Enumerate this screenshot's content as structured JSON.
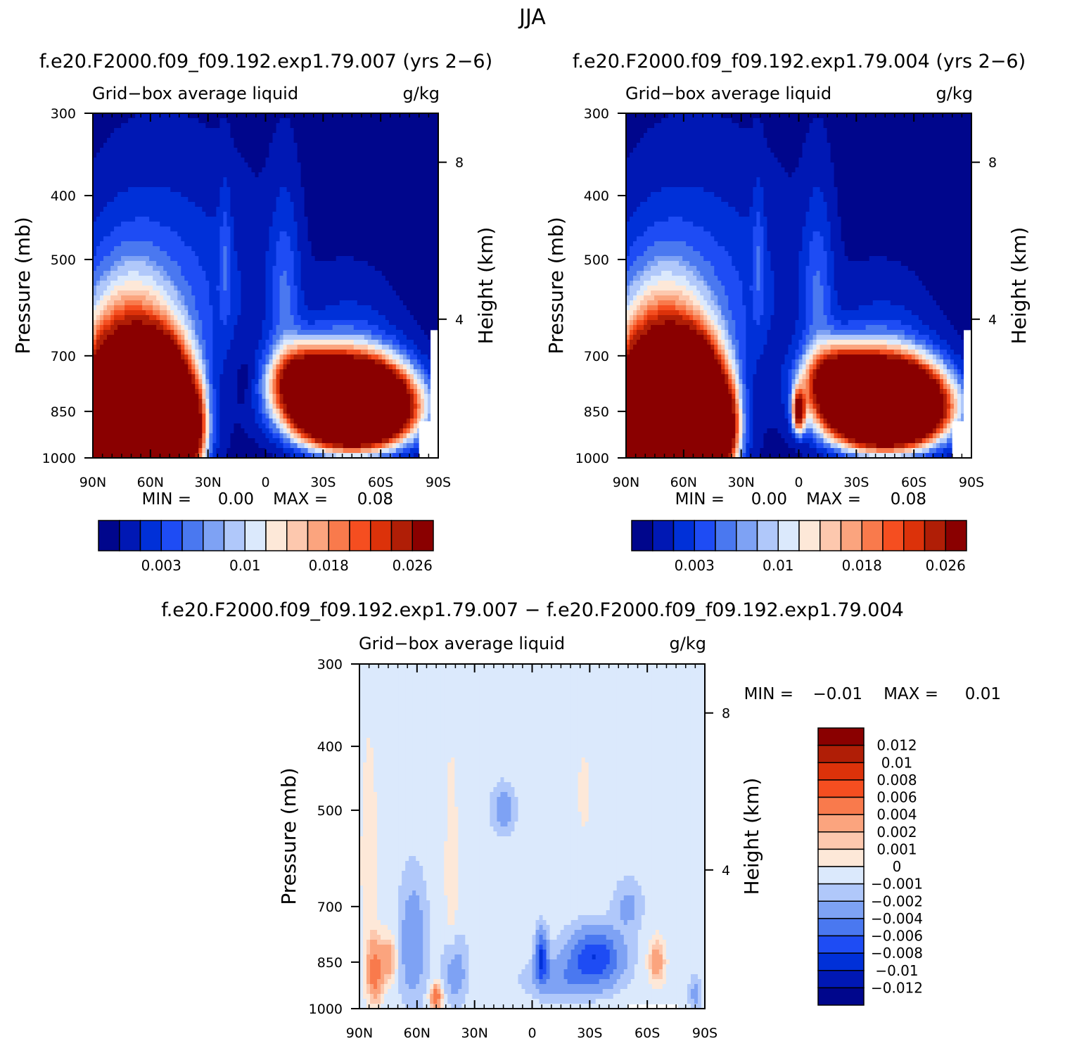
{
  "figure": {
    "title": "JJA",
    "colors": {
      "abs_levels": [
        "#00068c",
        "#0018b4",
        "#0030d8",
        "#1e4cf4",
        "#4a78f0",
        "#7ea2f4",
        "#b0c8fa",
        "#dbe9fc",
        "#fde8d8",
        "#fdc8ae",
        "#fba47e",
        "#f97a4c",
        "#f54e20",
        "#dc320a",
        "#b01e06",
        "#8a0000"
      ],
      "diff_levels": [
        "#00068c",
        "#0018b4",
        "#0030d8",
        "#1e4cf4",
        "#4a78f0",
        "#7ea2f4",
        "#b0c8fa",
        "#dbe9fc",
        "#fde8d8",
        "#fdc8ae",
        "#fba47e",
        "#f97a4c",
        "#f54e20",
        "#dc320a",
        "#b01e06",
        "#8a0000"
      ]
    }
  },
  "chart_data": [
    {
      "id": "panel1",
      "type": "heatmap",
      "case_title": "f.e20.F2000.f09_f09.192.exp1.79.007 (yrs 2−6)",
      "variable": "Grid−box average liquid",
      "units": "g/kg",
      "ylabel": "Pressure (mb)",
      "ylabel_right": "Height (km)",
      "y_ticks": [
        "300",
        "400",
        "500",
        "700",
        "850",
        "1000"
      ],
      "y_tick_values_mb": [
        300,
        400,
        500,
        700,
        850,
        1000
      ],
      "y_right_ticks": [
        "8",
        "4"
      ],
      "y_right_tick_values_mb": [
        356,
        616
      ],
      "x_ticks": [
        "90N",
        "60N",
        "30N",
        "0",
        "30S",
        "60S",
        "90S"
      ],
      "x_tick_values_lat": [
        90,
        60,
        30,
        0,
        -30,
        -60,
        -90
      ],
      "xlim": [
        90,
        -90
      ],
      "ylim_mb": [
        300,
        1000
      ],
      "min_label": "MIN =",
      "min_value": "0.00",
      "max_label": "MAX =",
      "max_value": "0.08",
      "colorbar_labels": [
        "0.003",
        "0.01",
        "0.018",
        "0.026"
      ],
      "colorbar_label_boxes": [
        3,
        7,
        11,
        15
      ],
      "field": {
        "base_lower": 0.0,
        "base_upper": 0.0,
        "features": [
          {
            "lat": 72,
            "p": 940,
            "wlat": 24,
            "wp": 260,
            "amp": 0.11
          },
          {
            "lat": 55,
            "p": 780,
            "wlat": 14,
            "wp": 110,
            "amp": 0.045
          },
          {
            "lat": 38,
            "p": 900,
            "wlat": 7,
            "wp": 120,
            "amp": 0.03
          },
          {
            "lat": -45,
            "p": 835,
            "wlat": 26,
            "wp": 105,
            "amp": 0.12
          },
          {
            "lat": -20,
            "p": 760,
            "wlat": 16,
            "wp": 80,
            "amp": 0.03
          },
          {
            "lat": 45,
            "p": 560,
            "wlat": 45,
            "wp": 200,
            "amp": 0.005
          },
          {
            "lat": -10,
            "p": 560,
            "wlat": 8,
            "wp": 180,
            "amp": 0.006
          },
          {
            "lat": 21,
            "p": 500,
            "wlat": 3,
            "wp": 120,
            "amp": 0.004
          },
          {
            "lat": -45,
            "p": 680,
            "wlat": 25,
            "wp": 150,
            "amp": 0.004
          },
          {
            "lat": 10,
            "p": 760,
            "wlat": 6,
            "wp": 80,
            "amp": -0.002
          }
        ]
      }
    },
    {
      "id": "panel2",
      "type": "heatmap",
      "case_title": "f.e20.F2000.f09_f09.192.exp1.79.004 (yrs 2−6)",
      "variable": "Grid−box average liquid",
      "units": "g/kg",
      "ylabel": "Pressure (mb)",
      "ylabel_right": "Height (km)",
      "y_ticks": [
        "300",
        "400",
        "500",
        "700",
        "850",
        "1000"
      ],
      "y_tick_values_mb": [
        300,
        400,
        500,
        700,
        850,
        1000
      ],
      "y_right_ticks": [
        "8",
        "4"
      ],
      "y_right_tick_values_mb": [
        356,
        616
      ],
      "x_ticks": [
        "90N",
        "60N",
        "30N",
        "0",
        "30S",
        "60S",
        "90S"
      ],
      "x_tick_values_lat": [
        90,
        60,
        30,
        0,
        -30,
        -60,
        -90
      ],
      "xlim": [
        90,
        -90
      ],
      "ylim_mb": [
        300,
        1000
      ],
      "min_label": "MIN =",
      "min_value": "0.00",
      "max_label": "MAX =",
      "max_value": "0.08",
      "colorbar_labels": [
        "0.003",
        "0.01",
        "0.018",
        "0.026"
      ],
      "colorbar_label_boxes": [
        3,
        7,
        11,
        15
      ],
      "field": {
        "base_lower": 0.0,
        "base_upper": 0.0,
        "features": [
          {
            "lat": 72,
            "p": 940,
            "wlat": 24,
            "wp": 260,
            "amp": 0.11
          },
          {
            "lat": 55,
            "p": 780,
            "wlat": 14,
            "wp": 110,
            "amp": 0.045
          },
          {
            "lat": 38,
            "p": 900,
            "wlat": 7,
            "wp": 120,
            "amp": 0.03
          },
          {
            "lat": -45,
            "p": 835,
            "wlat": 26,
            "wp": 105,
            "amp": 0.12
          },
          {
            "lat": -20,
            "p": 760,
            "wlat": 16,
            "wp": 80,
            "amp": 0.03
          },
          {
            "lat": 0,
            "p": 850,
            "wlat": 3,
            "wp": 60,
            "amp": 0.03
          },
          {
            "lat": 45,
            "p": 560,
            "wlat": 45,
            "wp": 200,
            "amp": 0.005
          },
          {
            "lat": -10,
            "p": 560,
            "wlat": 8,
            "wp": 180,
            "amp": 0.006
          },
          {
            "lat": 21,
            "p": 500,
            "wlat": 3,
            "wp": 120,
            "amp": 0.004
          },
          {
            "lat": -45,
            "p": 680,
            "wlat": 25,
            "wp": 150,
            "amp": 0.004
          }
        ]
      }
    },
    {
      "id": "panel3",
      "type": "heatmap",
      "case_title": "f.e20.F2000.f09_f09.192.exp1.79.007 − f.e20.F2000.f09_f09.192.exp1.79.004",
      "variable": "Grid−box average liquid",
      "units": "g/kg",
      "ylabel": "Pressure (mb)",
      "ylabel_right": "Height (km)",
      "y_ticks": [
        "300",
        "400",
        "500",
        "700",
        "850",
        "1000"
      ],
      "y_tick_values_mb": [
        300,
        400,
        500,
        700,
        850,
        1000
      ],
      "y_right_ticks": [
        "8",
        "4"
      ],
      "y_right_tick_values_mb": [
        356,
        616
      ],
      "x_ticks": [
        "90N",
        "60N",
        "30N",
        "0",
        "30S",
        "60S",
        "90S"
      ],
      "x_tick_values_lat": [
        90,
        60,
        30,
        0,
        -30,
        -60,
        -90
      ],
      "xlim": [
        90,
        -90
      ],
      "ylim_mb": [
        300,
        1000
      ],
      "min_label": "MIN =",
      "min_value": "−0.01",
      "max_label": "MAX =",
      "max_value": "0.01",
      "colorbar_labels": [
        "0.012",
        "0.01",
        "0.008",
        "0.006",
        "0.004",
        "0.002",
        "0.001",
        "0",
        "−0.001",
        "−0.002",
        "−0.004",
        "−0.006",
        "−0.008",
        "−0.01",
        "−0.012"
      ],
      "field": {
        "base_lower": -0.0005,
        "base_upper": -0.0005,
        "features": [
          {
            "lat": 82,
            "p": 880,
            "wlat": 4,
            "wp": 90,
            "amp": 0.006
          },
          {
            "lat": 75,
            "p": 840,
            "wlat": 4,
            "wp": 60,
            "amp": 0.004
          },
          {
            "lat": 50,
            "p": 960,
            "wlat": 3,
            "wp": 40,
            "amp": 0.006
          },
          {
            "lat": 42,
            "p": 620,
            "wlat": 3,
            "wp": 200,
            "amp": 0.0015
          },
          {
            "lat": 85,
            "p": 600,
            "wlat": 4,
            "wp": 200,
            "amp": 0.0015
          },
          {
            "lat": -65,
            "p": 850,
            "wlat": 4,
            "wp": 60,
            "amp": 0.004
          },
          {
            "lat": -27,
            "p": 470,
            "wlat": 3,
            "wp": 60,
            "amp": 0.0012
          },
          {
            "lat": 62,
            "p": 800,
            "wlat": 7,
            "wp": 160,
            "amp": -0.003
          },
          {
            "lat": 40,
            "p": 880,
            "wlat": 6,
            "wp": 100,
            "amp": -0.0025
          },
          {
            "lat": -33,
            "p": 830,
            "wlat": 13,
            "wp": 70,
            "amp": -0.007
          },
          {
            "lat": -5,
            "p": 840,
            "wlat": 3,
            "wp": 70,
            "amp": -0.008
          },
          {
            "lat": -20,
            "p": 900,
            "wlat": 20,
            "wp": 60,
            "amp": -0.003
          },
          {
            "lat": 15,
            "p": 500,
            "wlat": 6,
            "wp": 40,
            "amp": -0.0025
          },
          {
            "lat": -50,
            "p": 700,
            "wlat": 7,
            "wp": 60,
            "amp": -0.002
          },
          {
            "lat": -85,
            "p": 950,
            "wlat": 3,
            "wp": 60,
            "amp": -0.002
          }
        ]
      }
    }
  ]
}
